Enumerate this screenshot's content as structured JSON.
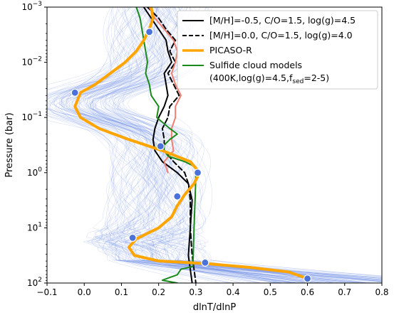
{
  "chart_data": {
    "type": "line",
    "xlabel": "dlnT/dlnP",
    "ylabel": "Pressure (bar)",
    "xlim": [
      -0.1,
      0.8
    ],
    "ylim_log10": [
      2,
      -3
    ],
    "y_scale": "log",
    "y_inverted": true,
    "x_ticks": [
      "−0.1",
      "0.0",
      "0.1",
      "0.2",
      "0.3",
      "0.4",
      "0.5",
      "0.6",
      "0.7",
      "0.8"
    ],
    "x_tick_values": [
      -0.1,
      0.0,
      0.1,
      0.2,
      0.3,
      0.4,
      0.5,
      0.6,
      0.7,
      0.8
    ],
    "y_ticks": [
      {
        "base": "10",
        "exp": "−3",
        "log10": -3
      },
      {
        "base": "10",
        "exp": "−2",
        "log10": -2
      },
      {
        "base": "10",
        "exp": "−1",
        "log10": -1
      },
      {
        "base": "10",
        "exp": "0",
        "log10": 0
      },
      {
        "base": "10",
        "exp": "1",
        "log10": 1
      },
      {
        "base": "10",
        "exp": "2",
        "log10": 2
      }
    ],
    "legend_position": "top-right",
    "legend": [
      {
        "label": "[M/H]=-0.5, C/O=1.5, log(g)=4.5",
        "series": "solid_black"
      },
      {
        "label": "[M/H]=0.0, C/O=1.5, log(g)=4.0",
        "series": "dashed_black"
      },
      {
        "label": "PICASO-R",
        "series": "picaso"
      },
      {
        "label_line1": "Sulfide cloud models",
        "label_line2_prefix": " (400K,log(g)=4.5,f",
        "label_sub": "sed",
        "label_line2_suffix": "=2-5)",
        "series": "sulfide"
      }
    ],
    "series": [
      {
        "id": "solid_black",
        "color": "#000000",
        "style": "solid",
        "points": [
          [
            0.16,
            -3.0
          ],
          [
            0.18,
            -2.8
          ],
          [
            0.2,
            -2.6
          ],
          [
            0.22,
            -2.4
          ],
          [
            0.225,
            -2.2
          ],
          [
            0.235,
            -2.0
          ],
          [
            0.215,
            -1.8
          ],
          [
            0.22,
            -1.6
          ],
          [
            0.225,
            -1.4
          ],
          [
            0.215,
            -1.2
          ],
          [
            0.2,
            -1.0
          ],
          [
            0.19,
            -0.8
          ],
          [
            0.185,
            -0.6
          ],
          [
            0.19,
            -0.4
          ],
          [
            0.21,
            -0.2
          ],
          [
            0.25,
            0.0
          ],
          [
            0.28,
            0.2
          ],
          [
            0.29,
            0.5
          ],
          [
            0.285,
            1.0
          ],
          [
            0.28,
            1.5
          ],
          [
            0.29,
            2.0
          ]
        ]
      },
      {
        "id": "dashed_black",
        "color": "#000000",
        "style": "dashed",
        "points": [
          [
            0.17,
            -3.0
          ],
          [
            0.2,
            -2.8
          ],
          [
            0.22,
            -2.6
          ],
          [
            0.245,
            -2.4
          ],
          [
            0.23,
            -2.2
          ],
          [
            0.245,
            -2.0
          ],
          [
            0.225,
            -1.8
          ],
          [
            0.24,
            -1.6
          ],
          [
            0.255,
            -1.4
          ],
          [
            0.23,
            -1.2
          ],
          [
            0.225,
            -1.0
          ],
          [
            0.21,
            -0.8
          ],
          [
            0.215,
            -0.6
          ],
          [
            0.215,
            -0.4
          ],
          [
            0.24,
            -0.2
          ],
          [
            0.27,
            0.0
          ],
          [
            0.28,
            0.2
          ],
          [
            0.285,
            0.5
          ],
          [
            0.285,
            1.0
          ],
          [
            0.29,
            1.5
          ],
          [
            0.3,
            2.0
          ]
        ]
      },
      {
        "id": "salmon",
        "color": "#f07f72",
        "style": "solid",
        "points": [
          [
            0.175,
            -3.0
          ],
          [
            0.19,
            -2.8
          ],
          [
            0.215,
            -2.6
          ],
          [
            0.24,
            -2.4
          ],
          [
            0.25,
            -2.2
          ],
          [
            0.245,
            -2.0
          ],
          [
            0.235,
            -1.8
          ],
          [
            0.245,
            -1.6
          ],
          [
            0.26,
            -1.4
          ],
          [
            0.245,
            -1.2
          ],
          [
            0.245,
            -1.0
          ],
          [
            0.235,
            -0.8
          ],
          [
            0.235,
            -0.6
          ],
          [
            0.24,
            -0.4
          ],
          [
            0.215,
            -0.2
          ],
          [
            0.225,
            0.0
          ]
        ]
      },
      {
        "id": "sulfide",
        "color": "#1a8a1a",
        "style": "solid",
        "points": [
          [
            0.14,
            -3.0
          ],
          [
            0.15,
            -2.8
          ],
          [
            0.155,
            -2.6
          ],
          [
            0.16,
            -2.4
          ],
          [
            0.165,
            -2.2
          ],
          [
            0.17,
            -2.0
          ],
          [
            0.165,
            -1.8
          ],
          [
            0.175,
            -1.6
          ],
          [
            0.18,
            -1.4
          ],
          [
            0.2,
            -1.2
          ],
          [
            0.195,
            -1.0
          ],
          [
            0.23,
            -0.8
          ],
          [
            0.25,
            -0.7
          ],
          [
            0.23,
            -0.6
          ],
          [
            0.215,
            -0.5
          ],
          [
            0.215,
            -0.4
          ],
          [
            0.225,
            -0.3
          ],
          [
            0.27,
            -0.2
          ],
          [
            0.3,
            -0.1
          ],
          [
            0.3,
            0.0
          ],
          [
            0.298,
            0.5
          ],
          [
            0.295,
            1.0
          ],
          [
            0.293,
            1.5
          ],
          [
            0.292,
            1.7
          ],
          [
            0.26,
            1.75
          ],
          [
            0.25,
            1.85
          ],
          [
            0.23,
            1.9
          ],
          [
            0.21,
            1.95
          ],
          [
            0.25,
            2.0
          ]
        ]
      },
      {
        "id": "picaso",
        "color": "#ffa500",
        "style": "solid",
        "points": [
          [
            0.18,
            -3.0
          ],
          [
            0.185,
            -2.8
          ],
          [
            0.175,
            -2.6
          ],
          [
            0.16,
            -2.4
          ],
          [
            0.14,
            -2.2
          ],
          [
            0.11,
            -2.0
          ],
          [
            0.07,
            -1.8
          ],
          [
            0.03,
            -1.6
          ],
          [
            -0.01,
            -1.45
          ],
          [
            -0.025,
            -1.2
          ],
          [
            -0.01,
            -1.0
          ],
          [
            0.04,
            -0.8
          ],
          [
            0.12,
            -0.6
          ],
          [
            0.21,
            -0.4
          ],
          [
            0.285,
            -0.2
          ],
          [
            0.31,
            0.0
          ],
          [
            0.295,
            0.2
          ],
          [
            0.27,
            0.4
          ],
          [
            0.25,
            0.6
          ],
          [
            0.235,
            0.8
          ],
          [
            0.2,
            1.0
          ],
          [
            0.14,
            1.2
          ],
          [
            0.12,
            1.35
          ],
          [
            0.135,
            1.5
          ],
          [
            0.2,
            1.6
          ],
          [
            0.33,
            1.65
          ],
          [
            0.45,
            1.72
          ],
          [
            0.55,
            1.8
          ],
          [
            0.6,
            1.92
          ]
        ]
      }
    ],
    "markers": [
      {
        "x": 0.175,
        "y": -2.55
      },
      {
        "x": -0.025,
        "y": -1.45
      },
      {
        "x": 0.205,
        "y": -0.48
      },
      {
        "x": 0.305,
        "y": 0.0
      },
      {
        "x": 0.25,
        "y": 0.43
      },
      {
        "x": 0.13,
        "y": 1.18
      },
      {
        "x": 0.325,
        "y": 1.63
      },
      {
        "x": 0.6,
        "y": 1.92
      }
    ],
    "background_ensemble": {
      "color": "#6f8fe6",
      "description_only": true
    }
  }
}
